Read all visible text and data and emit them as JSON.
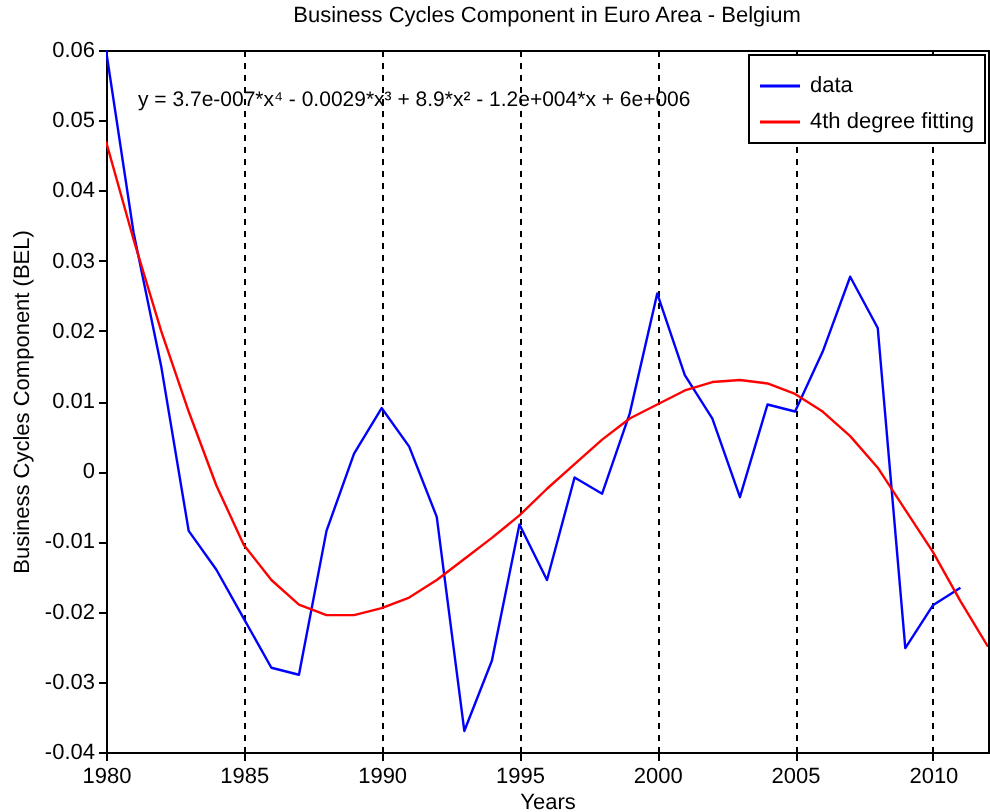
{
  "chart_data": {
    "type": "line",
    "title": "Business Cycles Component in Euro Area - Belgium",
    "xlabel": "Years",
    "ylabel": "Business Cycles Component (BEL)",
    "annotations": [
      "y = 3.7e-007*x⁴ - 0.0029*x³ + 8.9*x² - 1.2e+004*x + 6e+006"
    ],
    "x": [
      1980,
      1981,
      1982,
      1983,
      1984,
      1985,
      1986,
      1987,
      1988,
      1989,
      1990,
      1991,
      1992,
      1993,
      1994,
      1995,
      1996,
      1997,
      1998,
      1999,
      2000,
      2001,
      2002,
      2003,
      2004,
      2005,
      2006,
      2007,
      2008,
      2009,
      2010,
      2011
    ],
    "series": [
      {
        "name": "data",
        "color": "#0000ff",
        "values": [
          0.06,
          0.034,
          0.015,
          -0.0085,
          -0.014,
          -0.021,
          -0.028,
          -0.029,
          -0.0085,
          0.0025,
          0.009,
          0.0035,
          -0.0065,
          -0.037,
          -0.027,
          -0.0076,
          -0.0155,
          -0.0009,
          -0.0032,
          0.0082,
          0.0253,
          0.0137,
          0.0075,
          -0.0037,
          0.0095,
          0.0085,
          0.017,
          0.0277,
          0.0204,
          -0.0252,
          -0.0191,
          -0.0166
        ]
      },
      {
        "name": "4th degree fitting",
        "color": "#ff0000",
        "x": [
          1980,
          1981,
          1982,
          1983,
          1984,
          1985,
          1986,
          1987,
          1988,
          1989,
          1990,
          1991,
          1992,
          1993,
          1994,
          1995,
          1996,
          1997,
          1998,
          1999,
          2000,
          2001,
          2002,
          2003,
          2004,
          2005,
          2006,
          2007,
          2008,
          2009,
          2010,
          2011,
          2012
        ],
        "values": [
          0.047,
          0.033,
          0.02,
          0.0085,
          -0.002,
          -0.0105,
          -0.0155,
          -0.019,
          -0.0205,
          -0.0205,
          -0.0195,
          -0.018,
          -0.0155,
          -0.0125,
          -0.0095,
          -0.0063,
          -0.0025,
          0.001,
          0.0045,
          0.0075,
          0.0095,
          0.0115,
          0.0127,
          0.013,
          0.0125,
          0.011,
          0.0085,
          0.005,
          0.0005,
          -0.0055,
          -0.0115,
          -0.0185,
          -0.025
        ]
      }
    ],
    "xlim": [
      1980,
      2012
    ],
    "xticks": [
      1980,
      1985,
      1990,
      1995,
      2000,
      2005,
      2010
    ],
    "ylim": [
      -0.04,
      0.06
    ],
    "yticks": [
      -0.04,
      -0.03,
      -0.02,
      -0.01,
      0,
      0.01,
      0.02,
      0.03,
      0.04,
      0.05,
      0.06
    ],
    "grid": "x",
    "legend": "top right"
  }
}
